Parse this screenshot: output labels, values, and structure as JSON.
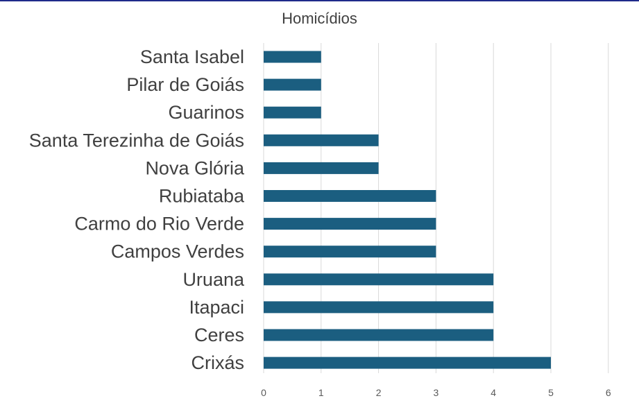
{
  "chart_data": {
    "type": "bar",
    "orientation": "horizontal",
    "title": "Homicídios",
    "xlabel": "",
    "ylabel": "",
    "categories": [
      "Santa Isabel",
      "Pilar de Goiás",
      "Guarinos",
      "Santa Terezinha de Goiás",
      "Nova Glória",
      "Rubiataba",
      "Carmo do Rio Verde",
      "Campos Verdes",
      "Uruana",
      "Itapaci",
      "Ceres",
      "Crixás"
    ],
    "values": [
      1,
      1,
      1,
      2,
      2,
      3,
      3,
      3,
      4,
      4,
      4,
      5
    ],
    "xlim": [
      0,
      6
    ],
    "ticks": [
      "0",
      "1",
      "2",
      "3",
      "4",
      "5",
      "6"
    ],
    "grid": true,
    "legend": "none",
    "bar_color": "#1b5e80",
    "grid_color": "#d9d9d9"
  }
}
